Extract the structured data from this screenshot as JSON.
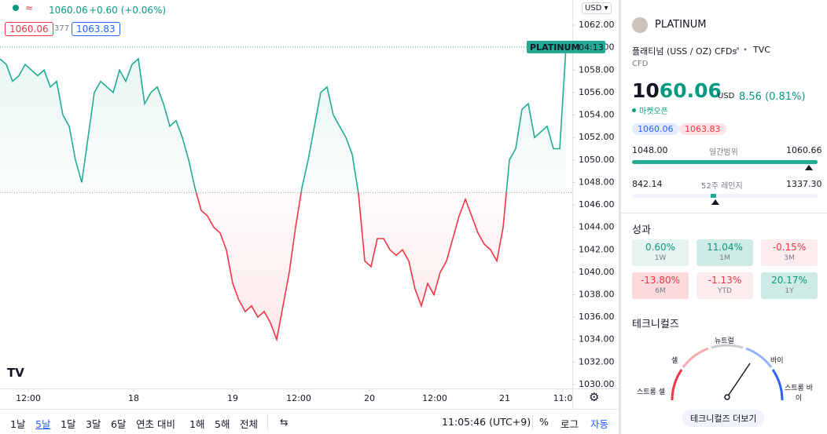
{
  "header": {
    "price": "1060.06",
    "change": "+0.60 (+0.06%)",
    "bid": "1060.06",
    "spread": "377",
    "ask": "1063.83"
  },
  "chart_data": {
    "type": "line",
    "style": "baseline",
    "values": [
      1059,
      1058.5,
      1057,
      1057.5,
      1058.5,
      1058,
      1057.5,
      1058,
      1056.5,
      1057,
      1054,
      1053,
      1050,
      1048,
      1052,
      1056,
      1057,
      1056.5,
      1056,
      1058,
      1057,
      1058.5,
      1059,
      1055,
      1056,
      1056.5,
      1055,
      1053,
      1053.5,
      1052,
      1050,
      1047.5,
      1045.5,
      1045,
      1044,
      1043.5,
      1042,
      1039,
      1037.5,
      1036.5,
      1037,
      1036,
      1036.5,
      1035.5,
      1034,
      1037,
      1040,
      1044,
      1047.5,
      1050,
      1053,
      1056,
      1056.5,
      1054,
      1053,
      1052,
      1050.5,
      1047,
      1041,
      1040.5,
      1043,
      1043,
      1042,
      1041.5,
      1042,
      1041,
      1038.5,
      1037,
      1039,
      1038,
      1040,
      1041,
      1043,
      1045,
      1046.5,
      1045,
      1043.5,
      1042.5,
      1042,
      1041,
      1044,
      1050,
      1051,
      1054.5,
      1055,
      1052,
      1052.5,
      1053,
      1051,
      1051,
      1060.06
    ],
    "baseline": 1047.1,
    "xlim": [
      0,
      91
    ],
    "ylim": [
      1029.65,
      1064.24
    ],
    "yticks": [
      {
        "value": 1030,
        "label": "1030.00"
      },
      {
        "value": 1032,
        "label": "1032.00"
      },
      {
        "value": 1034,
        "label": "1034.00"
      },
      {
        "value": 1036,
        "label": "1036.00"
      },
      {
        "value": 1038,
        "label": "1038.00"
      },
      {
        "value": 1040,
        "label": "1040.00"
      },
      {
        "value": 1042,
        "label": "1042.00"
      },
      {
        "value": 1044,
        "label": "1044.00"
      },
      {
        "value": 1046,
        "label": "1046.00"
      },
      {
        "value": 1048,
        "label": "1048.00"
      },
      {
        "value": 1050,
        "label": "1050.00"
      },
      {
        "value": 1052,
        "label": "1052.00"
      },
      {
        "value": 1054,
        "label": "1054.00"
      },
      {
        "value": 1056,
        "label": "1056.00"
      },
      {
        "value": 1058,
        "label": "1058.00"
      },
      {
        "value": 1060,
        "label": "1060.00"
      },
      {
        "value": 1062,
        "label": "1062.00"
      }
    ],
    "xticks": [
      {
        "value": 4.5,
        "label": "12:00"
      },
      {
        "value": 21.25,
        "label": "18"
      },
      {
        "value": 37,
        "label": "19"
      },
      {
        "value": 47.5,
        "label": "12:00"
      },
      {
        "value": 58.75,
        "label": "20"
      },
      {
        "value": 69.125,
        "label": "12:00"
      },
      {
        "value": 80.25,
        "label": "21"
      },
      {
        "value": 89.5,
        "label": "11:0"
      }
    ],
    "above_color": "#22ab94",
    "below_color": "#f23645",
    "last_price": 1060.06,
    "last_label": "PLATINUM",
    "countdown": "04:13",
    "currency": "USD"
  },
  "toolbar": {
    "ranges": [
      "1날",
      "5날",
      "1달",
      "3달",
      "6달",
      "연초 대비",
      "1해",
      "5해",
      "전체"
    ],
    "active": 1,
    "time": "11:05:46 (UTC+9)",
    "percent": "%",
    "log": "로그",
    "auto": "자동"
  },
  "sidebar": {
    "symbol": "PLATINUM",
    "description": "플래티넘 (USS / OZ) CFDs",
    "exchange": "TVC",
    "kind": "CFD",
    "price_unchanged": "10",
    "price_changed": "60.06",
    "currency": "USD",
    "change": "8.56 (0.81%)",
    "status": "마켓오픈",
    "bid": "1060.06",
    "ask": "1063.83",
    "day_range": {
      "low": "1048.00",
      "label": "일간범위",
      "high": "1060.66"
    },
    "year_range": {
      "low": "842.14",
      "label": "52주 레인지",
      "high": "1337.30"
    },
    "performance": {
      "title": "성과",
      "items": [
        {
          "value": "0.60%",
          "period": "1W"
        },
        {
          "value": "11.04%",
          "period": "1M"
        },
        {
          "value": "-0.15%",
          "period": "3M"
        },
        {
          "value": "-13.80%",
          "period": "6M"
        },
        {
          "value": "-1.13%",
          "period": "YTD"
        },
        {
          "value": "20.17%",
          "period": "1Y"
        }
      ]
    },
    "technicals": {
      "title": "테크니컬즈",
      "neutral": "뉴트럴",
      "sell": "셀",
      "buy": "바이",
      "strong_sell": "스트롱 셀",
      "strong_buy": "스트롱 바이",
      "button": "테크니컬즈 더보기"
    }
  }
}
